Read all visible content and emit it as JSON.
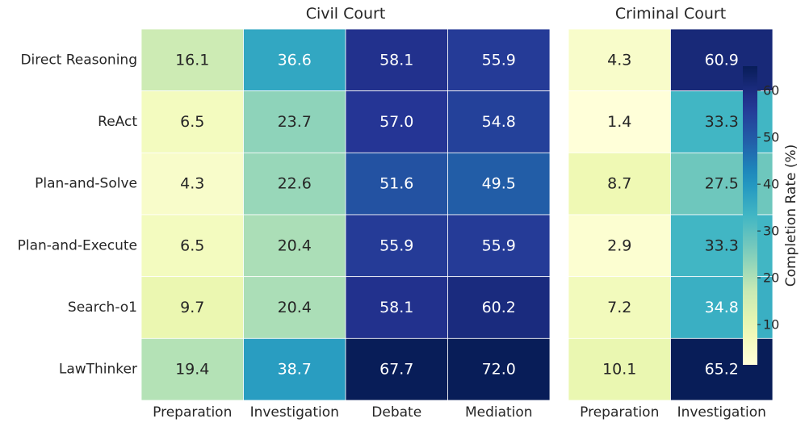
{
  "chart_data": {
    "type": "heatmap",
    "rows": [
      "Direct Reasoning",
      "ReAct",
      "Plan-and-Solve",
      "Plan-and-Execute",
      "Search-o1",
      "LawThinker"
    ],
    "panels": [
      {
        "title": "Civil Court",
        "columns": [
          "Preparation",
          "Investigation",
          "Debate",
          "Mediation"
        ],
        "values": [
          [
            16.1,
            36.6,
            58.1,
            55.9
          ],
          [
            6.5,
            23.7,
            57.0,
            54.8
          ],
          [
            4.3,
            22.6,
            51.6,
            49.5
          ],
          [
            6.5,
            20.4,
            55.9,
            55.9
          ],
          [
            9.7,
            20.4,
            58.1,
            60.2
          ],
          [
            19.4,
            38.7,
            67.7,
            72.0
          ]
        ]
      },
      {
        "title": "Criminal Court",
        "columns": [
          "Preparation",
          "Investigation"
        ],
        "values": [
          [
            4.3,
            60.9
          ],
          [
            1.4,
            33.3
          ],
          [
            8.7,
            27.5
          ],
          [
            2.9,
            33.3
          ],
          [
            7.2,
            34.8
          ],
          [
            10.1,
            65.2
          ]
        ]
      }
    ],
    "colorbar": {
      "label": "Completion Rate (%)",
      "ticks": [
        "10",
        "20",
        "30",
        "40",
        "50",
        "60"
      ],
      "tick_values": [
        10,
        20,
        30,
        40,
        50,
        60
      ],
      "range": [
        1.4,
        65.2
      ],
      "colormap": "YlGnBu"
    },
    "colors": {
      "cell_border": "#ffffff",
      "text_dark": "#262626",
      "text_light": "#ffffff"
    }
  }
}
